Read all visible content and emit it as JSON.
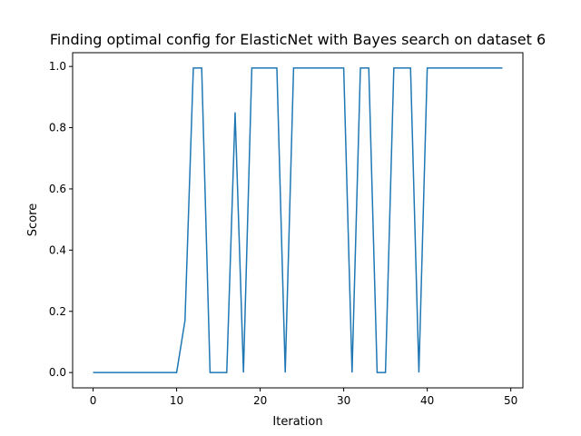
{
  "chart_data": {
    "type": "line",
    "title": "Finding optimal config for ElasticNet with Bayes search on dataset 6",
    "xlabel": "Iteration",
    "ylabel": "Score",
    "xlim": [
      -2.45,
      51.45
    ],
    "ylim": [
      -0.05,
      1.045
    ],
    "xticks": [
      0,
      10,
      20,
      30,
      40,
      50
    ],
    "yticks": [
      0.0,
      0.2,
      0.4,
      0.6,
      0.8,
      1.0
    ],
    "xtick_labels": [
      "0",
      "10",
      "20",
      "30",
      "40",
      "50"
    ],
    "ytick_labels": [
      "0.0",
      "0.2",
      "0.4",
      "0.6",
      "0.8",
      "1.0"
    ],
    "grid": false,
    "series": [
      {
        "color": "#1f77b4",
        "x": [
          0,
          1,
          2,
          3,
          4,
          5,
          6,
          7,
          8,
          9,
          10,
          11,
          12,
          13,
          14,
          15,
          16,
          17,
          18,
          19,
          20,
          21,
          22,
          23,
          24,
          25,
          26,
          27,
          28,
          29,
          30,
          31,
          32,
          33,
          34,
          35,
          36,
          37,
          38,
          39,
          40,
          41,
          42,
          43,
          44,
          45,
          46,
          47,
          48,
          49
        ],
        "values": [
          0,
          0,
          0,
          0,
          0,
          0,
          0,
          0,
          0,
          0,
          0,
          0.17,
          0.995,
          0.995,
          0,
          0,
          0,
          0.85,
          0,
          0.995,
          0.995,
          0.995,
          0.995,
          0,
          0.995,
          0.995,
          0.995,
          0.995,
          0.995,
          0.995,
          0.995,
          0,
          0.995,
          0.995,
          0,
          0,
          0.995,
          0.995,
          0.995,
          0,
          0.995,
          0.995,
          0.995,
          0.995,
          0.995,
          0.995,
          0.995,
          0.995,
          0.995,
          0.995
        ]
      }
    ]
  }
}
